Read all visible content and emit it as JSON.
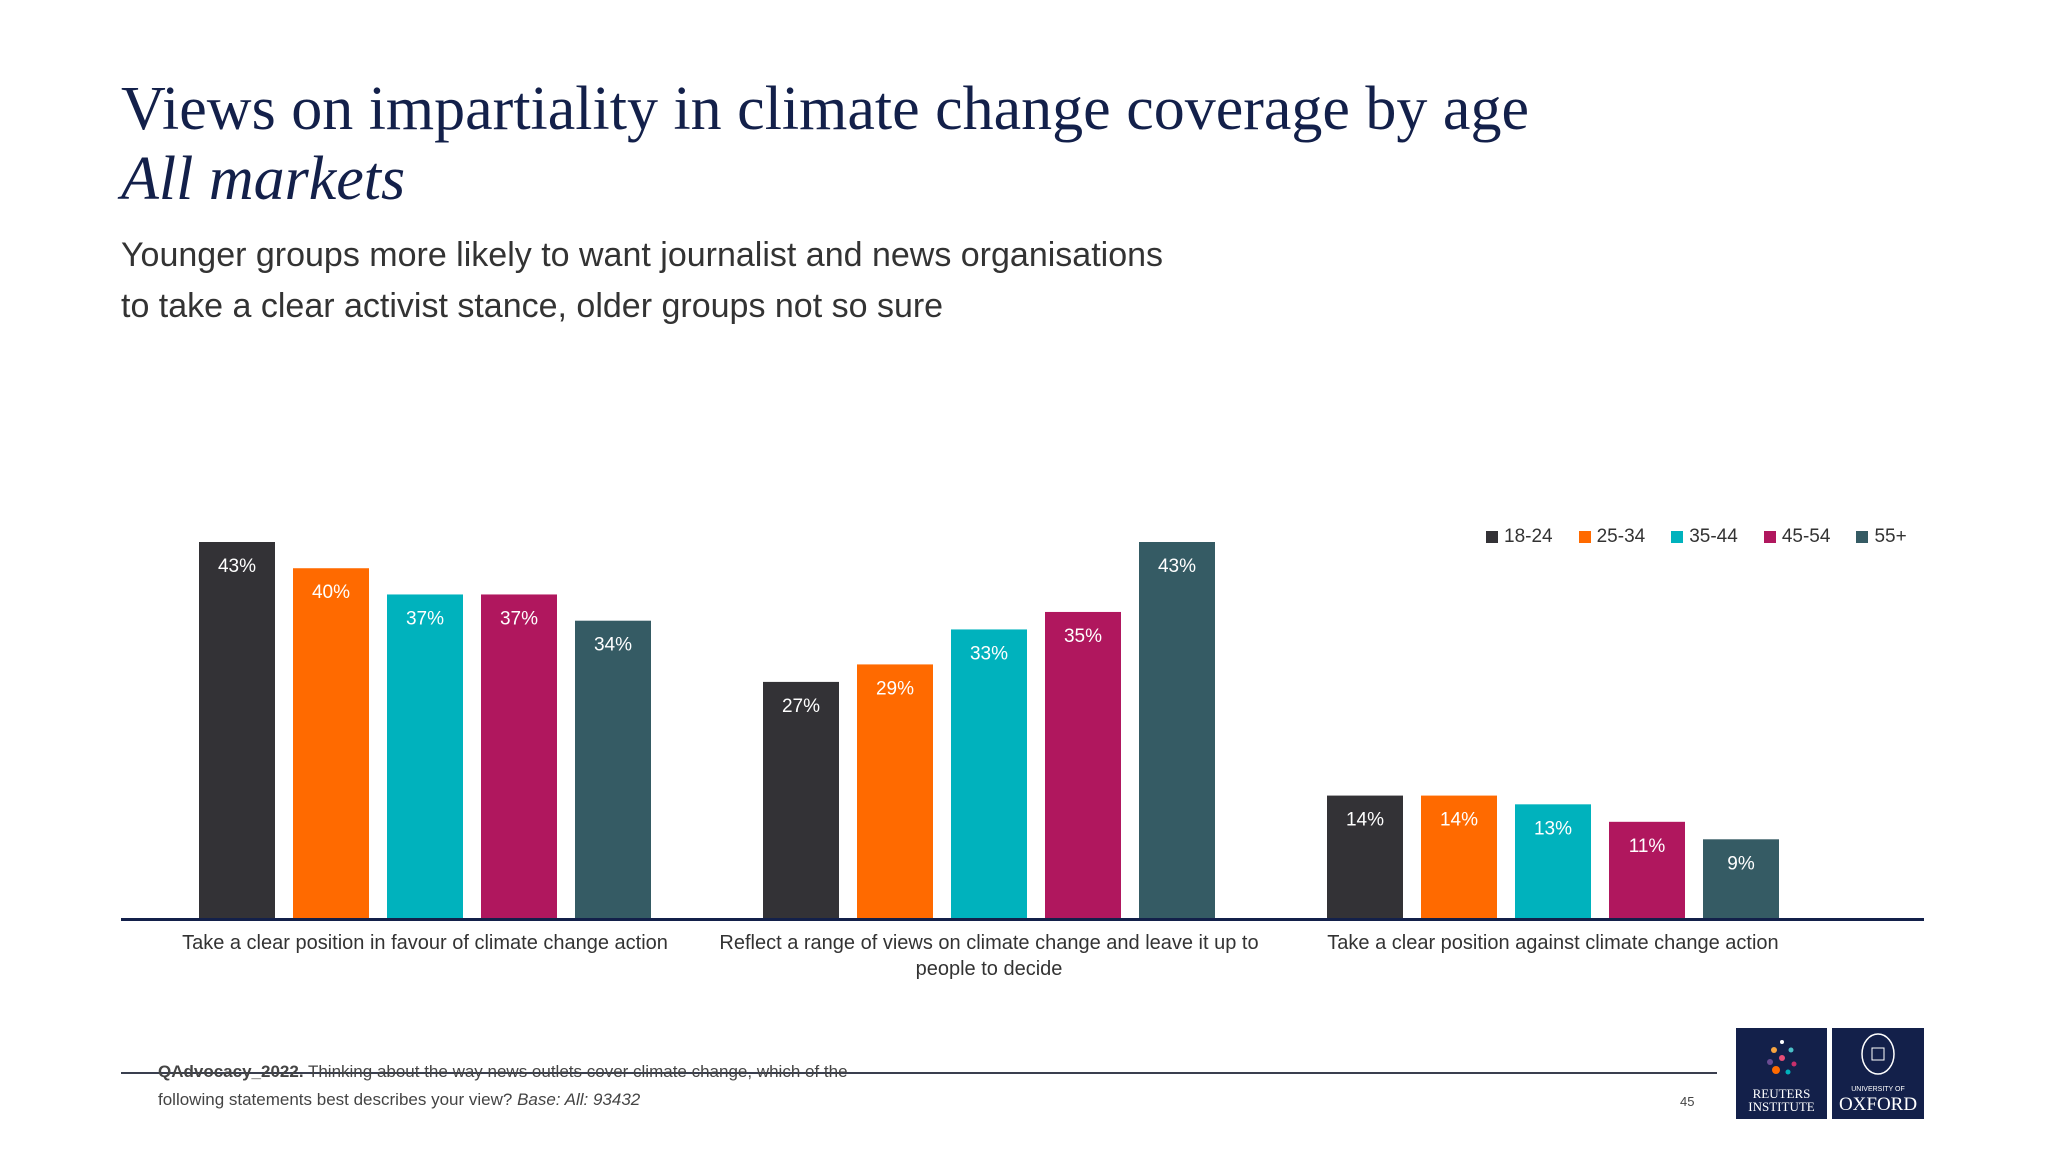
{
  "header": {
    "title": "Views on impartiality in climate change coverage by age",
    "subtitle_italic": "All markets",
    "description_line1": "Younger groups more likely to want journalist and news organisations",
    "description_line2": "to take a clear activist stance, older groups not so sure"
  },
  "chart_data": {
    "type": "bar",
    "categories": [
      "Take a clear position in favour of climate change action",
      "Reflect a range of views on climate change and leave it up to people to decide",
      "Take a clear position against climate change action"
    ],
    "series": [
      {
        "name": "18-24",
        "color": "#333236",
        "values": [
          43,
          27,
          14
        ]
      },
      {
        "name": "25-34",
        "color": "#ff6a00",
        "values": [
          40,
          29,
          14
        ]
      },
      {
        "name": "35-44",
        "color": "#00b2bd",
        "values": [
          37,
          33,
          13
        ]
      },
      {
        "name": "45-54",
        "color": "#b0175e",
        "values": [
          37,
          35,
          11
        ]
      },
      {
        "name": "55+",
        "color": "#355b64",
        "values": [
          34,
          43,
          9
        ]
      }
    ],
    "value_suffix": "%",
    "ylim": [
      0,
      43
    ],
    "legend": "top-right",
    "grid": false
  },
  "footer": {
    "question_bold": "QAdvocacy_2022.",
    "question_text": " Thinking about the way news outlets cover climate change, which of the",
    "question_line2": "following statements best describes your view? ",
    "base": "Base: All: 93432",
    "page_number": "45"
  },
  "logos": {
    "reuters": "REUTERS INSTITUTE",
    "oxford_small": "UNIVERSITY OF",
    "oxford": "OXFORD"
  }
}
